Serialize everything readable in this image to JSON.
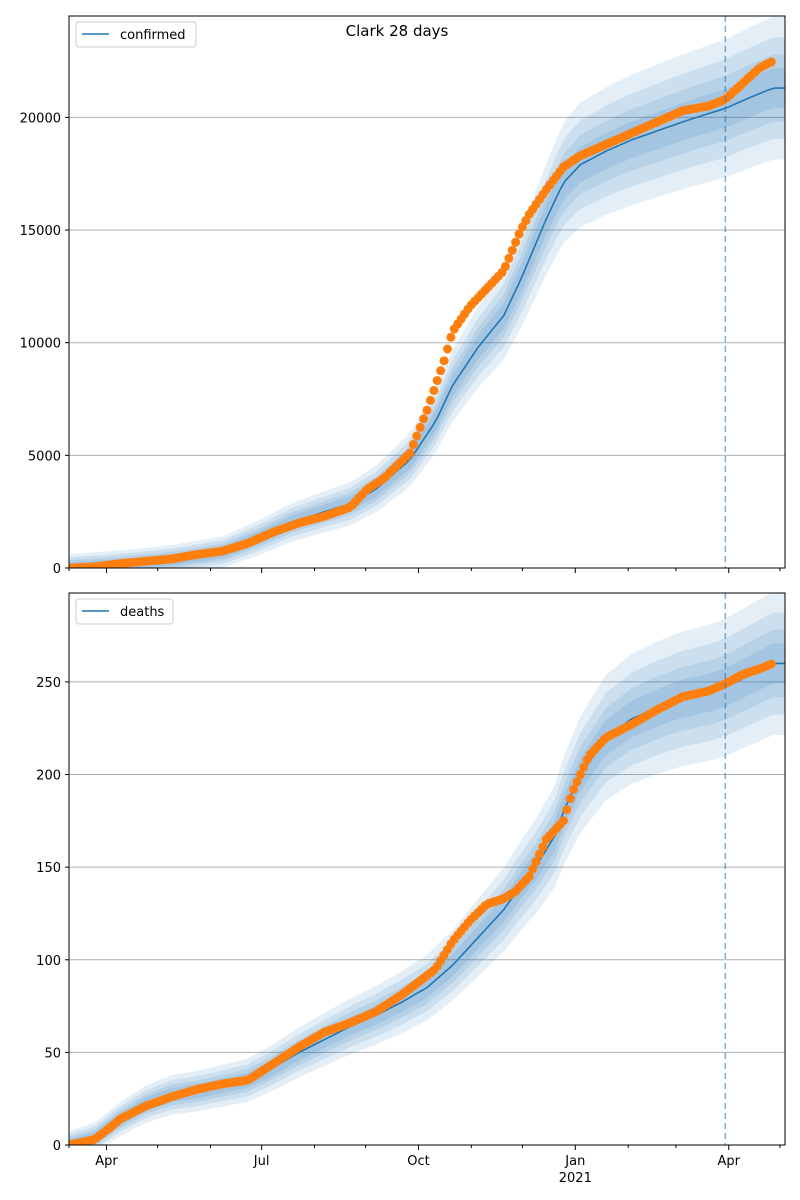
{
  "chart_data": [
    {
      "type": "line",
      "title": "Clark 28 days",
      "legend": {
        "label": "confirmed",
        "placement": "top-left"
      },
      "ylim": [
        0,
        24500
      ],
      "yticks": [
        0,
        5000,
        10000,
        15000,
        20000
      ],
      "ytick_labels": [
        "0",
        "5000",
        "10000",
        "15000",
        "20000"
      ],
      "forecast_start_day": 385,
      "model_x": [
        0,
        30,
        60,
        90,
        110,
        130,
        150,
        165,
        180,
        200,
        215,
        225,
        240,
        255,
        265,
        280,
        290,
        300,
        315,
        330,
        345,
        360,
        370,
        385,
        400,
        413
      ],
      "model_y": [
        0,
        150,
        360,
        700,
        1300,
        2000,
        2500,
        2850,
        3500,
        4800,
        6500,
        8100,
        9800,
        11200,
        12800,
        15500,
        17100,
        17900,
        18500,
        19000,
        19400,
        19800,
        20050,
        20400,
        20900,
        21300
      ],
      "observed_x": [
        0,
        15,
        30,
        45,
        60,
        75,
        90,
        105,
        120,
        135,
        150,
        165,
        175,
        185,
        200,
        210,
        220,
        225,
        235,
        245,
        255,
        265,
        270,
        280,
        290,
        300,
        315,
        330,
        345,
        360,
        375,
        385,
        395,
        405,
        413
      ],
      "observed_y": [
        0,
        50,
        200,
        300,
        400,
        600,
        750,
        1100,
        1600,
        2000,
        2300,
        2700,
        3500,
        4000,
        5100,
        7000,
        9200,
        10500,
        11600,
        12400,
        13200,
        15000,
        15700,
        16800,
        17800,
        18300,
        18800,
        19300,
        19800,
        20300,
        20500,
        20800,
        21500,
        22200,
        22500
      ]
    },
    {
      "type": "line",
      "title": "",
      "legend": {
        "label": "deaths",
        "placement": "top-left"
      },
      "ylim": [
        0,
        298
      ],
      "yticks": [
        0,
        50,
        100,
        150,
        200,
        250
      ],
      "ytick_labels": [
        "0",
        "50",
        "100",
        "150",
        "200",
        "250"
      ],
      "forecast_start_day": 385,
      "model_x": [
        0,
        15,
        30,
        45,
        60,
        75,
        90,
        105,
        120,
        135,
        150,
        165,
        180,
        195,
        210,
        225,
        240,
        255,
        265,
        275,
        285,
        290,
        300,
        315,
        330,
        345,
        360,
        375,
        385,
        400,
        413
      ],
      "model_y": [
        0,
        4,
        14,
        22,
        27,
        29,
        32,
        35,
        42,
        50,
        57,
        64,
        70,
        77,
        85,
        97,
        112,
        127,
        140,
        152,
        167,
        180,
        200,
        220,
        230,
        236,
        241,
        244,
        247,
        254,
        260
      ],
      "observed_x": [
        0,
        15,
        25,
        30,
        45,
        60,
        75,
        90,
        105,
        120,
        135,
        150,
        165,
        180,
        195,
        205,
        215,
        225,
        235,
        245,
        255,
        262,
        270,
        280,
        290,
        295,
        305,
        315,
        330,
        345,
        360,
        375,
        385,
        395,
        405,
        413
      ],
      "observed_y": [
        0,
        3,
        10,
        14,
        21,
        26,
        30,
        33,
        35,
        44,
        53,
        61,
        66,
        72,
        81,
        88,
        95,
        110,
        121,
        130,
        133,
        137,
        145,
        165,
        175,
        190,
        210,
        220,
        227,
        235,
        242,
        245,
        249,
        254,
        257,
        260
      ]
    }
  ],
  "x_axis": {
    "tick_days": [
      22,
      113,
      205,
      297,
      387
    ],
    "tick_labels": [
      "Apr",
      "Jul",
      "Oct",
      "Jan",
      "Apr"
    ],
    "year_label": "2021",
    "year_label_under_tick": 3,
    "minor_tick_days": [
      0,
      52,
      83,
      144,
      174,
      236,
      266,
      328,
      356,
      417
    ]
  },
  "colors": {
    "model_line": "#1f77b4",
    "observed": "#ff7f0e",
    "band": "#1f77b4",
    "grid": "#b0b0b0",
    "forecast_line": "#1f77b4"
  }
}
